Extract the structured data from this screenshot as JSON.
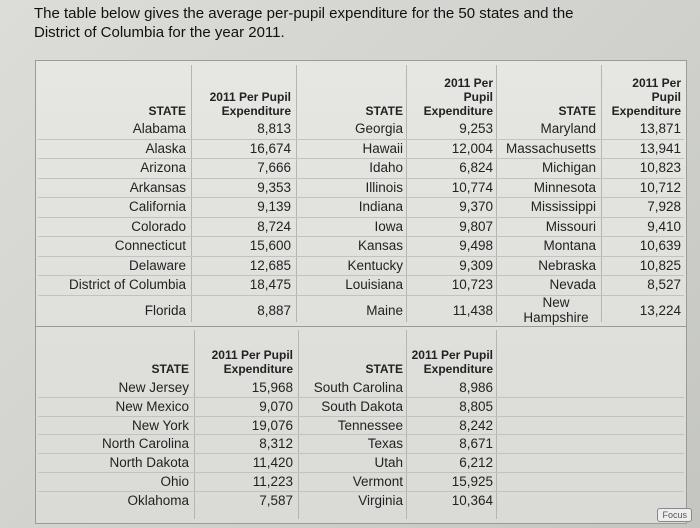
{
  "intro": "The table below gives the average per-pupil expenditure for the 50 states and the District of Columbia for the year 2011.",
  "blocks": [
    {
      "groups": [
        {
          "state_header": "STATE",
          "expenditure_header": "2011 Per Pupil Expenditure",
          "rows": [
            [
              "Alabama",
              "8,813"
            ],
            [
              "Alaska",
              "16,674"
            ],
            [
              "Arizona",
              "7,666"
            ],
            [
              "Arkansas",
              "9,353"
            ],
            [
              "California",
              "9,139"
            ],
            [
              "Colorado",
              "8,724"
            ],
            [
              "Connecticut",
              "15,600"
            ],
            [
              "Delaware",
              "12,685"
            ],
            [
              "District of Columbia",
              "18,475"
            ],
            [
              "Florida",
              "8,887"
            ]
          ]
        },
        {
          "state_header": "STATE",
          "expenditure_header": "2011 Per Pupil Expenditure",
          "rows": [
            [
              "Georgia",
              "9,253"
            ],
            [
              "Hawaii",
              "12,004"
            ],
            [
              "Idaho",
              "6,824"
            ],
            [
              "Illinois",
              "10,774"
            ],
            [
              "Indiana",
              "9,370"
            ],
            [
              "Iowa",
              "9,807"
            ],
            [
              "Kansas",
              "9,498"
            ],
            [
              "Kentucky",
              "9,309"
            ],
            [
              "Louisiana",
              "10,723"
            ],
            [
              "Maine",
              "11,438"
            ]
          ]
        },
        {
          "state_header": "STATE",
          "expenditure_header": "2011 Per Pupil Expenditure",
          "rows": [
            [
              "Maryland",
              "13,871"
            ],
            [
              "Massachusetts",
              "13,941"
            ],
            [
              "Michigan",
              "10,823"
            ],
            [
              "Minnesota",
              "10,712"
            ],
            [
              "Mississippi",
              "7,928"
            ],
            [
              "Missouri",
              "9,410"
            ],
            [
              "Montana",
              "10,639"
            ],
            [
              "Nebraska",
              "10,825"
            ],
            [
              "Nevada",
              "8,527"
            ],
            [
              "New Hampshire",
              "13,224"
            ]
          ]
        }
      ]
    },
    {
      "groups": [
        {
          "state_header": "STATE",
          "expenditure_header": "2011 Per Pupil Expenditure",
          "rows": [
            [
              "New Jersey",
              "15,968"
            ],
            [
              "New Mexico",
              "9,070"
            ],
            [
              "New York",
              "19,076"
            ],
            [
              "North Carolina",
              "8,312"
            ],
            [
              "North Dakota",
              "11,420"
            ],
            [
              "Ohio",
              "11,223"
            ],
            [
              "Oklahoma",
              "7,587"
            ]
          ]
        },
        {
          "state_header": "STATE",
          "expenditure_header": "2011 Per Pupil Expenditure",
          "rows": [
            [
              "South Carolina",
              "8,986"
            ],
            [
              "South Dakota",
              "8,805"
            ],
            [
              "Tennessee",
              "8,242"
            ],
            [
              "Texas",
              "8,671"
            ],
            [
              "Utah",
              "6,212"
            ],
            [
              "Vermont",
              "15,925"
            ],
            [
              "Virginia",
              "10,364"
            ]
          ]
        }
      ]
    }
  ],
  "badge": "Focus"
}
